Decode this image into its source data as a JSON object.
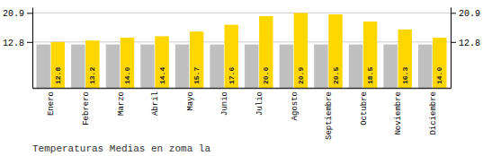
{
  "chart_data": {
    "type": "bar",
    "title": "Temperaturas Medias en zoma la",
    "categories": [
      "Enero",
      "Febrero",
      "Marzo",
      "Abril",
      "Mayo",
      "Junio",
      "Julio",
      "Agosto",
      "Septiembre",
      "Octubre",
      "Noviembre",
      "Diciembre"
    ],
    "series": [
      {
        "color": "#C0C0C0",
        "values": [
          12.1,
          12.1,
          12.1,
          12.1,
          12.1,
          12.1,
          12.1,
          12.1,
          12.1,
          12.1,
          12.1,
          12.1
        ]
      },
      {
        "color": "#FFD700",
        "values": [
          12.8,
          13.2,
          14.0,
          14.4,
          15.7,
          17.6,
          20.0,
          20.9,
          20.5,
          18.5,
          16.3,
          14.0
        ],
        "value_labels": [
          "12.8",
          "13.2",
          "14.0",
          "14.4",
          "15.7",
          "17.6",
          "20.0",
          "20.9",
          "20.5",
          "18.5",
          "16.3",
          "14.0"
        ],
        "data_labels": true
      }
    ],
    "ylim": [
      0,
      22.5
    ],
    "yticks": [
      12.8,
      20.9
    ],
    "y2lim": [
      0,
      22.5
    ],
    "y2ticks": [
      12.8,
      20.9
    ],
    "grid": true
  }
}
